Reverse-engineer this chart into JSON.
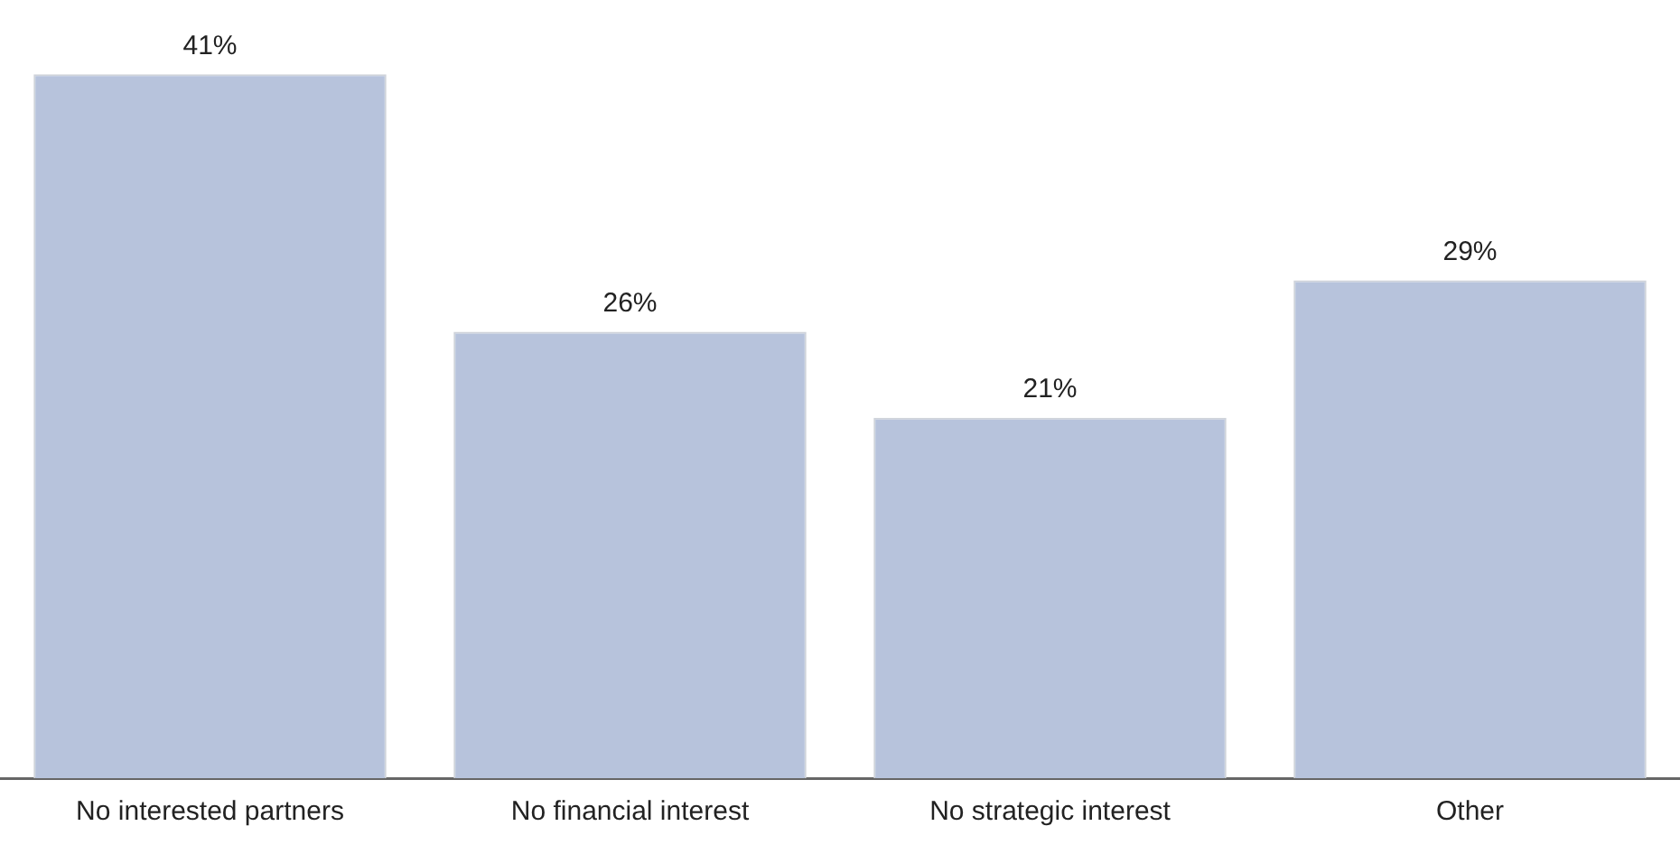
{
  "chart_data": {
    "type": "bar",
    "categories": [
      "No interested partners",
      "No financial interest",
      "No strategic interest",
      "Other"
    ],
    "values": [
      41,
      26,
      21,
      29
    ],
    "value_labels": [
      "41%",
      "26%",
      "21%",
      "29%"
    ],
    "color": "#b7c3dc",
    "grid": false,
    "legend": false,
    "tick_labels": "x"
  }
}
